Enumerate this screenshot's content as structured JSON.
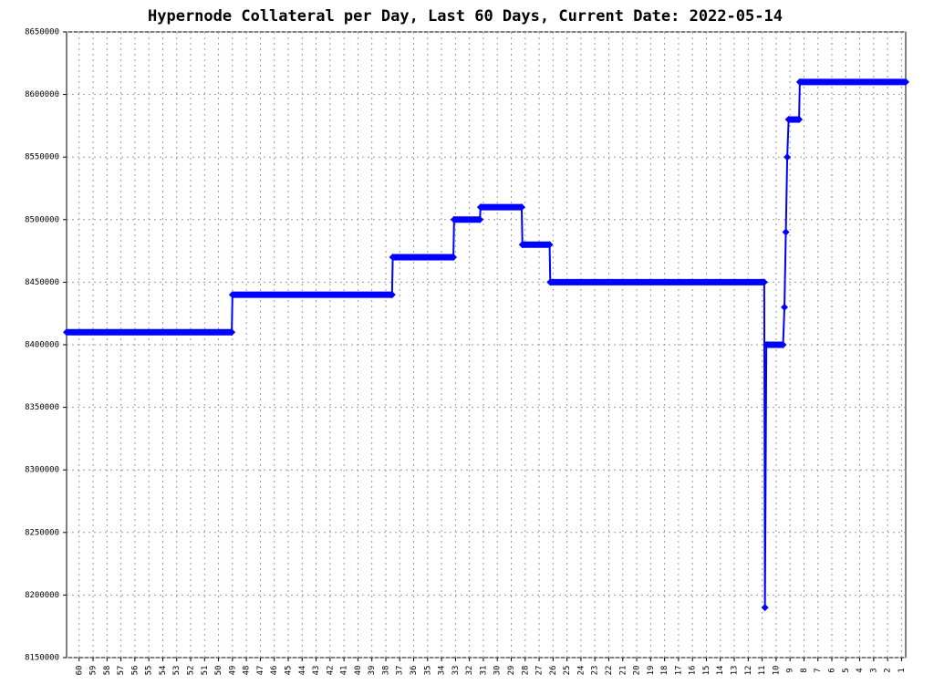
{
  "chart_data": {
    "type": "line",
    "title": "Hypernode Collateral per Day, Last 60 Days, Current Date: 2022-05-14",
    "x": [
      60.9,
      49.05,
      49,
      37.55,
      37.5,
      33.15,
      33.1,
      31.25,
      31.2,
      28.25,
      28.2,
      26.25,
      26.2,
      10.85,
      10.8,
      10.7,
      9.5,
      9.4,
      9.3,
      9.2,
      9.1,
      8.35,
      8.3,
      0.7
    ],
    "series": [
      {
        "name": "Collateral",
        "color": "#0000ff",
        "values": [
          8410000,
          8410000,
          8440000,
          8440000,
          8470000,
          8470000,
          8500000,
          8500000,
          8510000,
          8510000,
          8480000,
          8480000,
          8450000,
          8450000,
          8190000,
          8400000,
          8400000,
          8430000,
          8490000,
          8550000,
          8580000,
          8580000,
          8610000,
          8610000
        ]
      }
    ],
    "xlim": [
      60.9,
      0.7
    ],
    "xticks": [
      60,
      59,
      58,
      57,
      56,
      55,
      54,
      53,
      52,
      51,
      50,
      49,
      48,
      47,
      46,
      45,
      44,
      43,
      42,
      41,
      40,
      39,
      38,
      37,
      36,
      35,
      34,
      33,
      32,
      31,
      30,
      29,
      28,
      27,
      26,
      25,
      24,
      23,
      22,
      21,
      20,
      19,
      18,
      17,
      16,
      15,
      14,
      13,
      12,
      11,
      10,
      9,
      8,
      7,
      6,
      5,
      4,
      3,
      2,
      1
    ],
    "ylim": [
      8150000,
      8650000
    ],
    "yticks": [
      8150000,
      8200000,
      8250000,
      8300000,
      8350000,
      8400000,
      8450000,
      8500000,
      8550000,
      8600000,
      8650000
    ],
    "grid": true
  }
}
